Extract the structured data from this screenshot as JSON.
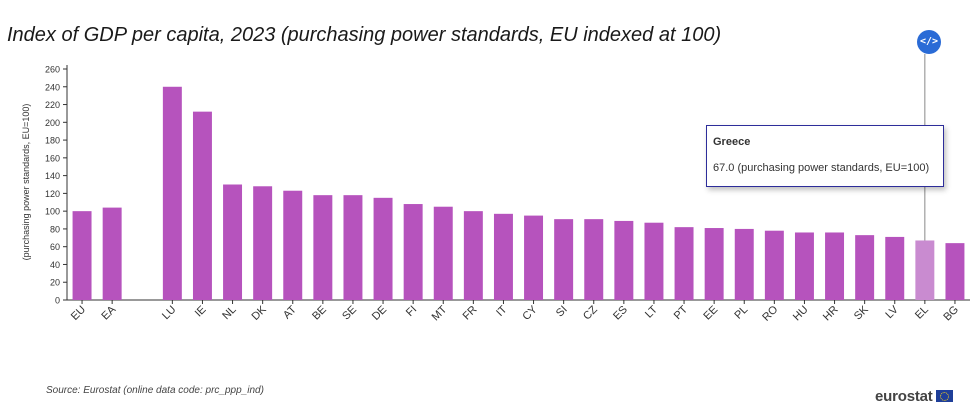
{
  "title": "Index of GDP per capita, 2023 (purchasing power standards, EU indexed at 100)",
  "embed_label": "</>",
  "source": "Source: Eurostat (online data code: prc_ppp_ind)",
  "logo_text": "eurostat",
  "tooltip": {
    "name": "Greece",
    "value_text": "67.0 (purchasing power standards, EU=100)"
  },
  "chart_data": {
    "type": "bar",
    "ylabel": "(purchasing power standards, EU=100)",
    "ylim": [
      0,
      260
    ],
    "yticks": [
      0,
      20,
      40,
      60,
      80,
      100,
      120,
      140,
      160,
      180,
      200,
      220,
      240,
      260
    ],
    "categories": [
      "EU",
      "EA",
      "",
      "LU",
      "IE",
      "NL",
      "DK",
      "AT",
      "BE",
      "SE",
      "DE",
      "FI",
      "MT",
      "FR",
      "IT",
      "CY",
      "SI",
      "CZ",
      "ES",
      "LT",
      "PT",
      "EE",
      "PL",
      "RO",
      "HU",
      "HR",
      "SK",
      "LV",
      "EL",
      "BG"
    ],
    "values": [
      100,
      104,
      null,
      240,
      212,
      130,
      128,
      123,
      118,
      118,
      115,
      108,
      105,
      100,
      97,
      95,
      91,
      91,
      89,
      87,
      82,
      81,
      80,
      78,
      76,
      76,
      73,
      71,
      67,
      64
    ],
    "highlighted": "EL",
    "bar_color": "#b653bd",
    "highlight_color": "#c98bd0"
  }
}
